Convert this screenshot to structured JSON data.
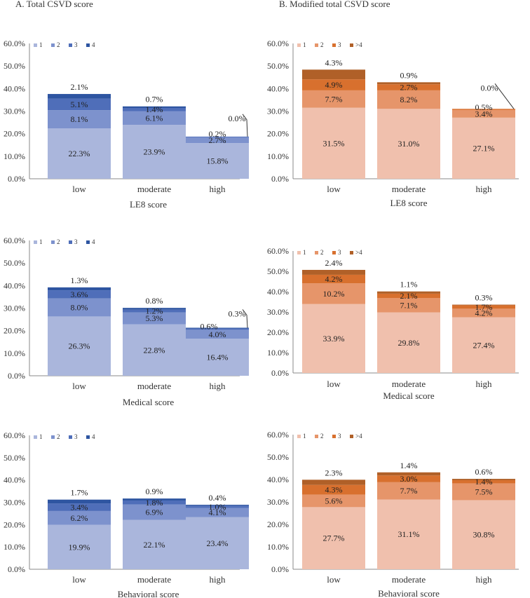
{
  "panel_titles": {
    "left": "A. Total CSVD score",
    "right": "B. Modified total CSVD score"
  },
  "palettes": {
    "blue": [
      "#aab6dc",
      "#7d92cd",
      "#4f6eb9",
      "#2e55a1"
    ],
    "orange": [
      "#f0c0ad",
      "#e6956a",
      "#d8702e",
      "#b06028"
    ]
  },
  "chart_data": [
    {
      "id": "A1",
      "type": "bar",
      "stacked": true,
      "palette": "blue",
      "title": "",
      "xlabel": "LE8 score",
      "ylabel": "",
      "ylim": [
        0,
        60
      ],
      "yticks": [
        "0.0%",
        "10.0%",
        "20.0%",
        "30.0%",
        "40.0%",
        "50.0%",
        "60.0%"
      ],
      "legend": [
        "1",
        "2",
        "3",
        "4"
      ],
      "categories": [
        "low",
        "moderate",
        "high"
      ],
      "series": [
        {
          "name": "1",
          "values": [
            22.3,
            23.9,
            15.8
          ],
          "labels": [
            "22.3%",
            "23.9%",
            "15.8%"
          ]
        },
        {
          "name": "2",
          "values": [
            8.1,
            6.1,
            2.7
          ],
          "labels": [
            "8.1%",
            "6.1%",
            "2.7%"
          ]
        },
        {
          "name": "3",
          "values": [
            5.1,
            1.4,
            0.2
          ],
          "labels": [
            "5.1%",
            "1.4%",
            "0.2%"
          ]
        },
        {
          "name": "4",
          "values": [
            2.1,
            0.7,
            0.0
          ],
          "labels": [
            "2.1%",
            "0.7%",
            "0.0%"
          ]
        }
      ]
    },
    {
      "id": "B1",
      "type": "bar",
      "stacked": true,
      "palette": "orange",
      "title": "",
      "xlabel": "LE8 score",
      "ylabel": "",
      "ylim": [
        0,
        60
      ],
      "yticks": [
        "0.0%",
        "10.0%",
        "20.0%",
        "30.0%",
        "40.0%",
        "50.0%",
        "60.0%"
      ],
      "legend": [
        "1",
        "2",
        "3",
        ">4"
      ],
      "categories": [
        "low",
        "moderate",
        "high"
      ],
      "series": [
        {
          "name": "1",
          "values": [
            31.5,
            31.0,
            27.1
          ],
          "labels": [
            "31.5%",
            "31.0%",
            "27.1%"
          ]
        },
        {
          "name": "2",
          "values": [
            7.7,
            8.2,
            3.4
          ],
          "labels": [
            "7.7%",
            "8.2%",
            "3.4%"
          ]
        },
        {
          "name": "3",
          "values": [
            4.9,
            2.7,
            0.5
          ],
          "labels": [
            "4.9%",
            "2.7%",
            "0.5%"
          ]
        },
        {
          "name": ">4",
          "values": [
            4.3,
            0.9,
            0.0
          ],
          "labels": [
            "4.3%",
            "0.9%",
            "0.0%"
          ]
        }
      ]
    },
    {
      "id": "A2",
      "type": "bar",
      "stacked": true,
      "palette": "blue",
      "title": "",
      "xlabel": "Medical score",
      "ylabel": "",
      "ylim": [
        0,
        60
      ],
      "yticks": [
        "0.0%",
        "10.0%",
        "20.0%",
        "30.0%",
        "40.0%",
        "50.0%",
        "60.0%"
      ],
      "legend": [
        "1",
        "2",
        "3",
        "4"
      ],
      "categories": [
        "low",
        "moderate",
        "high"
      ],
      "series": [
        {
          "name": "1",
          "values": [
            26.3,
            22.8,
            16.4
          ],
          "labels": [
            "26.3%",
            "22.8%",
            "16.4%"
          ]
        },
        {
          "name": "2",
          "values": [
            8.0,
            5.3,
            4.0
          ],
          "labels": [
            "8.0%",
            "5.3%",
            "4.0%"
          ]
        },
        {
          "name": "3",
          "values": [
            3.6,
            1.2,
            0.6
          ],
          "labels": [
            "3.6%",
            "1.2%",
            "0.6%"
          ]
        },
        {
          "name": "4",
          "values": [
            1.3,
            0.8,
            0.3
          ],
          "labels": [
            "1.3%",
            "0.8%",
            "0.3%"
          ]
        }
      ]
    },
    {
      "id": "B2",
      "type": "bar",
      "stacked": true,
      "palette": "orange",
      "title": "",
      "xlabel": "Medical score",
      "ylabel": "",
      "ylim": [
        0,
        60
      ],
      "yticks": [
        "0.0%",
        "10.0%",
        "20.0%",
        "30.0%",
        "40.0%",
        "50.0%",
        "60.0%"
      ],
      "legend": [
        "1",
        "2",
        "3",
        ">4"
      ],
      "categories": [
        "low",
        "moderate",
        "high"
      ],
      "series": [
        {
          "name": "1",
          "values": [
            33.9,
            29.8,
            27.4
          ],
          "labels": [
            "33.9%",
            "29.8%",
            "27.4%"
          ]
        },
        {
          "name": "2",
          "values": [
            10.2,
            7.1,
            4.2
          ],
          "labels": [
            "10.2%",
            "7.1%",
            "4.2%"
          ]
        },
        {
          "name": "3",
          "values": [
            4.2,
            2.1,
            1.7
          ],
          "labels": [
            "4.2%",
            "2.1%",
            "1.7%"
          ]
        },
        {
          "name": ">4",
          "values": [
            2.4,
            1.1,
            0.3
          ],
          "labels": [
            "2.4%",
            "1.1%",
            "0.3%"
          ]
        }
      ]
    },
    {
      "id": "A3",
      "type": "bar",
      "stacked": true,
      "palette": "blue",
      "title": "",
      "xlabel": "Behavioral score",
      "ylabel": "",
      "ylim": [
        0,
        60
      ],
      "yticks": [
        "0.0%",
        "10.0%",
        "20.0%",
        "30.0%",
        "40.0%",
        "50.0%",
        "60.0%"
      ],
      "legend": [
        "1",
        "2",
        "3",
        "4"
      ],
      "categories": [
        "low",
        "moderate",
        "high"
      ],
      "series": [
        {
          "name": "1",
          "values": [
            19.9,
            22.1,
            23.4
          ],
          "labels": [
            "19.9%",
            "22.1%",
            "23.4%"
          ]
        },
        {
          "name": "2",
          "values": [
            6.2,
            6.9,
            4.1
          ],
          "labels": [
            "6.2%",
            "6.9%",
            "4.1%"
          ]
        },
        {
          "name": "3",
          "values": [
            3.4,
            1.8,
            1.0
          ],
          "labels": [
            "3.4%",
            "1.8%",
            "1.0%"
          ]
        },
        {
          "name": "4",
          "values": [
            1.7,
            0.9,
            0.4
          ],
          "labels": [
            "1.7%",
            "0.9%",
            "0.4%"
          ]
        }
      ]
    },
    {
      "id": "B3",
      "type": "bar",
      "stacked": true,
      "palette": "orange",
      "title": "",
      "xlabel": "Behavioral score",
      "ylabel": "",
      "ylim": [
        0,
        60
      ],
      "yticks": [
        "0.0%",
        "10.0%",
        "20.0%",
        "30.0%",
        "40.0%",
        "50.0%",
        "60.0%"
      ],
      "legend": [
        "1",
        "2",
        "3",
        ">4"
      ],
      "categories": [
        "low",
        "moderate",
        "high"
      ],
      "series": [
        {
          "name": "1",
          "values": [
            27.7,
            31.1,
            30.8
          ],
          "labels": [
            "27.7%",
            "31.1%",
            "30.8%"
          ]
        },
        {
          "name": "2",
          "values": [
            5.6,
            7.7,
            7.5
          ],
          "labels": [
            "5.6%",
            "7.7%",
            "7.5%"
          ]
        },
        {
          "name": "3",
          "values": [
            4.3,
            3.0,
            1.4
          ],
          "labels": [
            "4.3%",
            "3.0%",
            "1.4%"
          ]
        },
        {
          "name": ">4",
          "values": [
            2.3,
            1.4,
            0.6
          ],
          "labels": [
            "2.3%",
            "1.4%",
            "0.6%"
          ]
        }
      ]
    }
  ]
}
